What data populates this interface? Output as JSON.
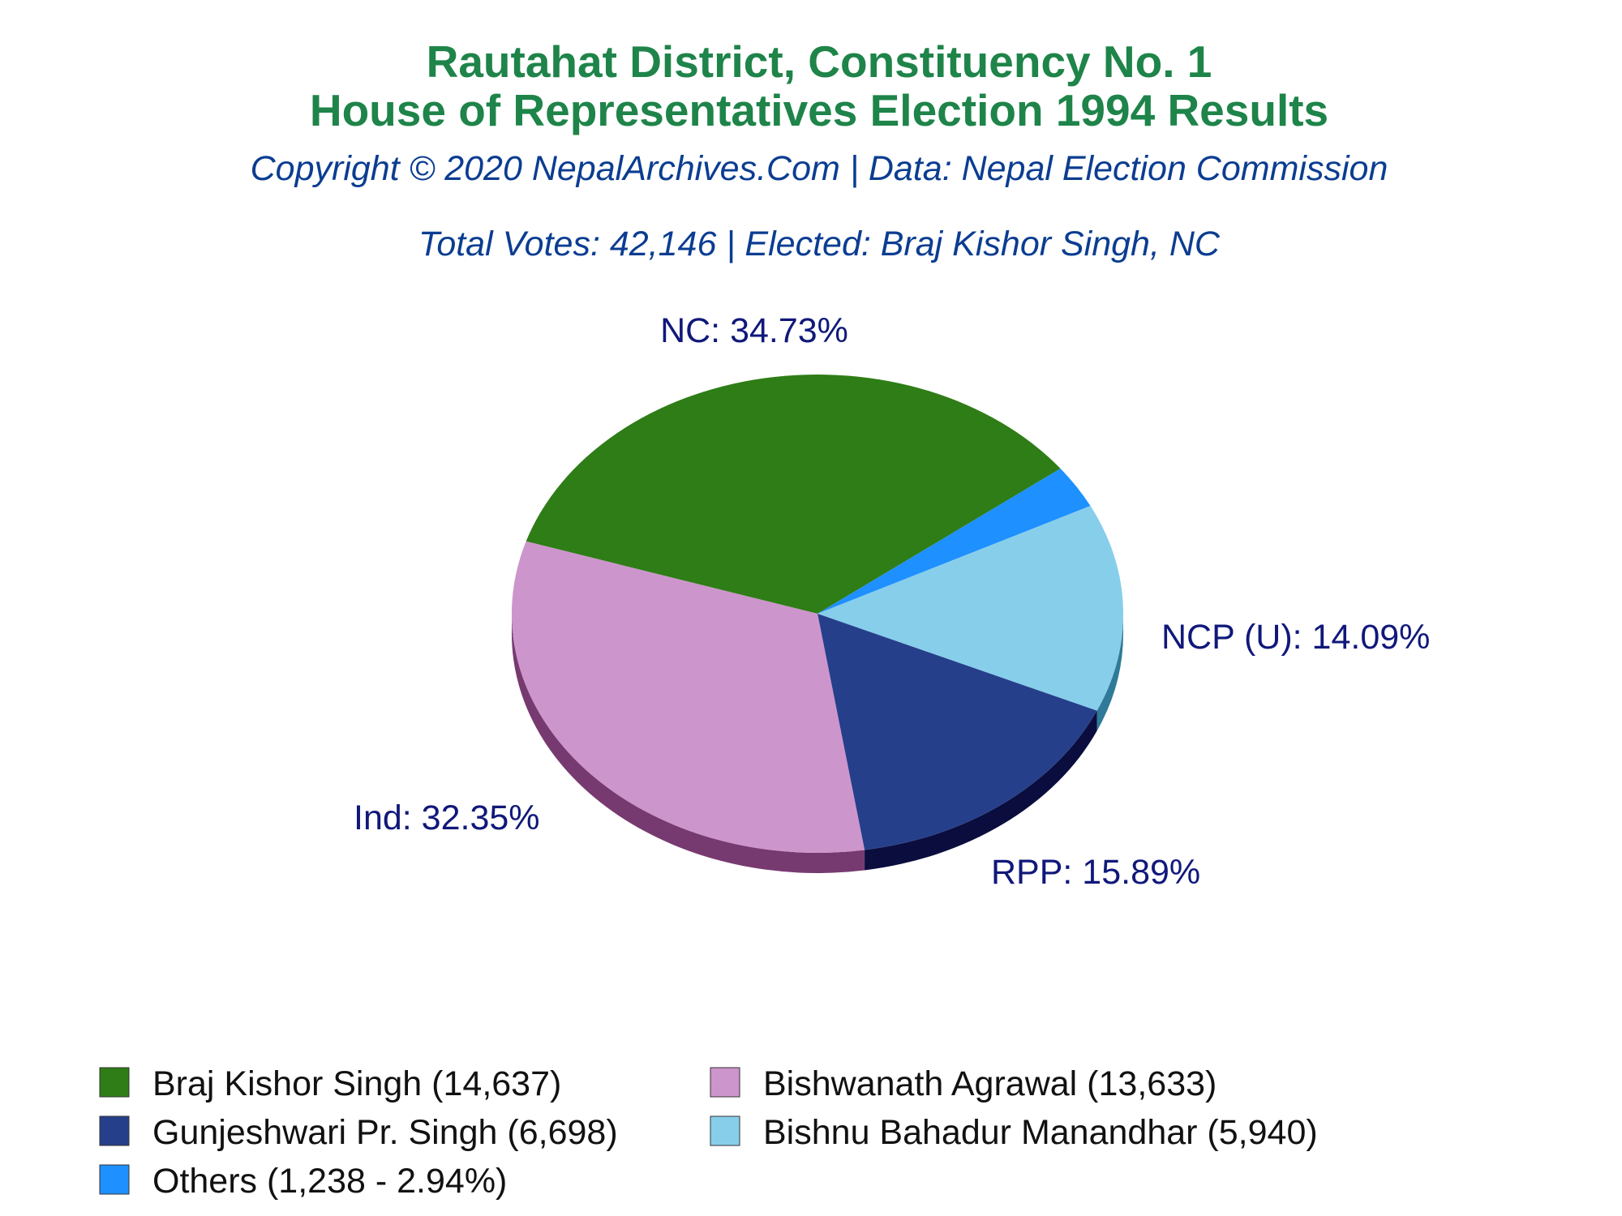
{
  "chart_data": {
    "type": "pie",
    "title": "Rautahat District, Constituency No. 1",
    "subtitle": "House of Representatives Election 1994 Results",
    "copyright": "Copyright © 2020 NepalArchives.Com | Data: Nepal Election Commission",
    "summary": "Total Votes: 42,146 | Elected: Braj Kishor Singh, NC",
    "slices": [
      {
        "party": "NC",
        "candidate": "Braj Kishor Singh",
        "votes": 14637,
        "percent": 34.73,
        "color": "#2e7d16",
        "side_color": "#1b4d0c",
        "slice_label": "NC: 34.73%",
        "legend_label": "Braj Kishor Singh (14,637)"
      },
      {
        "party": "Others",
        "candidate": "Others",
        "votes": 1238,
        "percent": 2.94,
        "color": "#1e90ff",
        "side_color": "#0f5aa8",
        "slice_label": "",
        "legend_label": "Others (1,238 - 2.94%)"
      },
      {
        "party": "NCP (U)",
        "candidate": "Bishnu Bahadur Manandhar",
        "votes": 5940,
        "percent": 14.09,
        "color": "#87ceeb",
        "side_color": "#2f7a98",
        "slice_label": "NCP (U): 14.09%",
        "legend_label": "Bishnu Bahadur Manandhar (5,940)"
      },
      {
        "party": "RPP",
        "candidate": "Gunjeshwari Pr. Singh",
        "votes": 6698,
        "percent": 15.89,
        "color": "#263f8a",
        "side_color": "#0a0d3d",
        "slice_label": "RPP: 15.89%",
        "legend_label": "Gunjeshwari Pr. Singh (6,698)"
      },
      {
        "party": "Ind",
        "candidate": "Bishwanath Agrawal",
        "votes": 13633,
        "percent": 32.35,
        "color": "#cc95cb",
        "side_color": "#773a70",
        "slice_label": "Ind: 32.35%",
        "legend_label": "Bishwanath Agrawal (13,633)"
      }
    ],
    "legend_order": [
      0,
      4,
      3,
      2,
      1
    ],
    "legend_placement": "bottom"
  }
}
